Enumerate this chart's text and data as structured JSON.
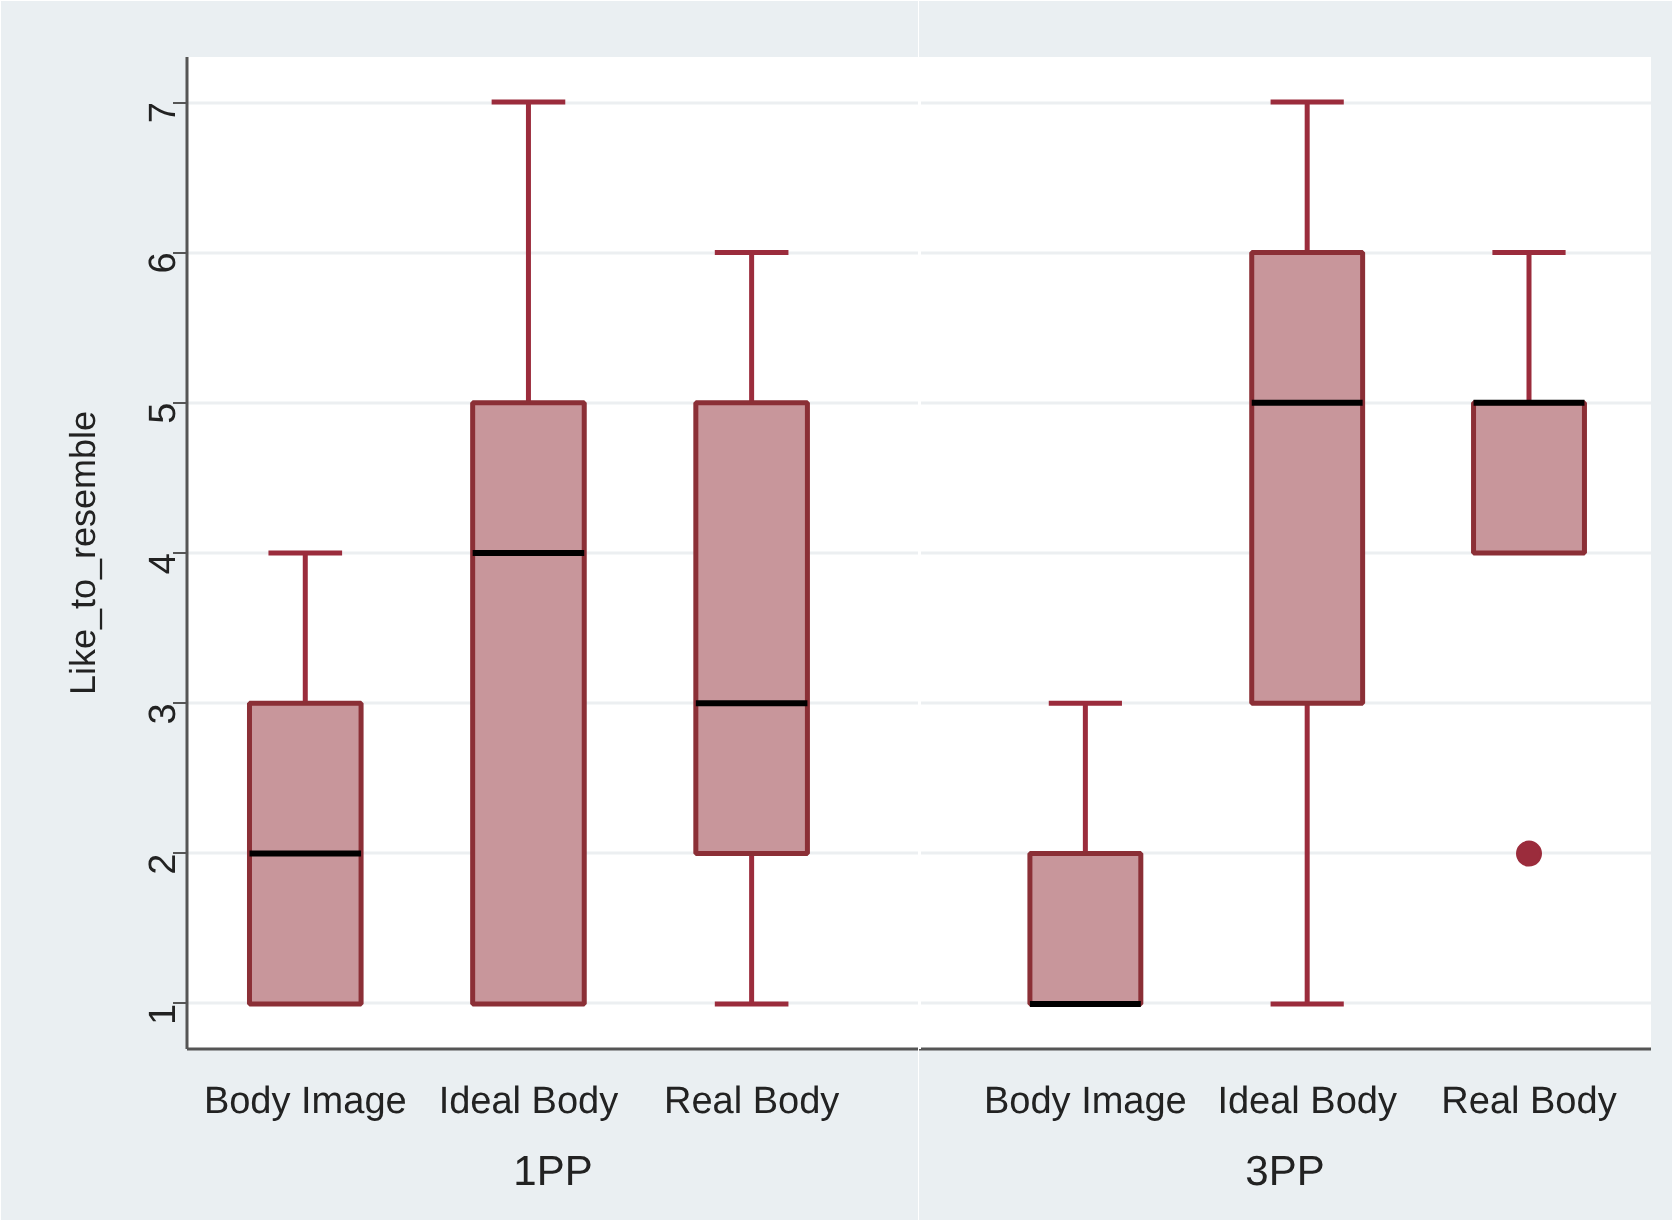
{
  "chart_data": [
    {
      "type": "box",
      "categories": [
        "Body Image",
        "Ideal Body",
        "Real Body"
      ],
      "xlabel": "1PP",
      "ylabel": "Like_to_resemble",
      "color": "#c8969b",
      "boxes": [
        {
          "low": 1,
          "q1": 1,
          "median": 2,
          "q3": 3,
          "high": 4
        },
        {
          "low": 1,
          "q1": 1,
          "median": 4,
          "q3": 5,
          "high": 7
        },
        {
          "low": 1,
          "q1": 2,
          "median": 3,
          "q3": 5,
          "high": 6
        }
      ],
      "ylim": [
        0.7,
        7.3
      ],
      "yticks": [
        1,
        2,
        3,
        4,
        5,
        6,
        7
      ],
      "grid": "y"
    },
    {
      "type": "box",
      "categories": [
        "Body Image",
        "Ideal Body",
        "Real Body"
      ],
      "xlabel": "3PP",
      "color": "#c8969b",
      "boxes": [
        {
          "low": 1,
          "q1": 1,
          "median": 1,
          "q3": 2,
          "high": 3
        },
        {
          "low": 1,
          "q1": 3,
          "median": 5,
          "q3": 6,
          "high": 7
        },
        {
          "low": 4,
          "q1": 4,
          "median": 5,
          "q3": 5,
          "high": 6,
          "outliers": [
            2
          ]
        }
      ],
      "ylim": [
        0.7,
        7.3
      ],
      "yticks": [
        1,
        2,
        3,
        4,
        5,
        6,
        7
      ],
      "grid": "y",
      "tick_labels": "x"
    }
  ]
}
